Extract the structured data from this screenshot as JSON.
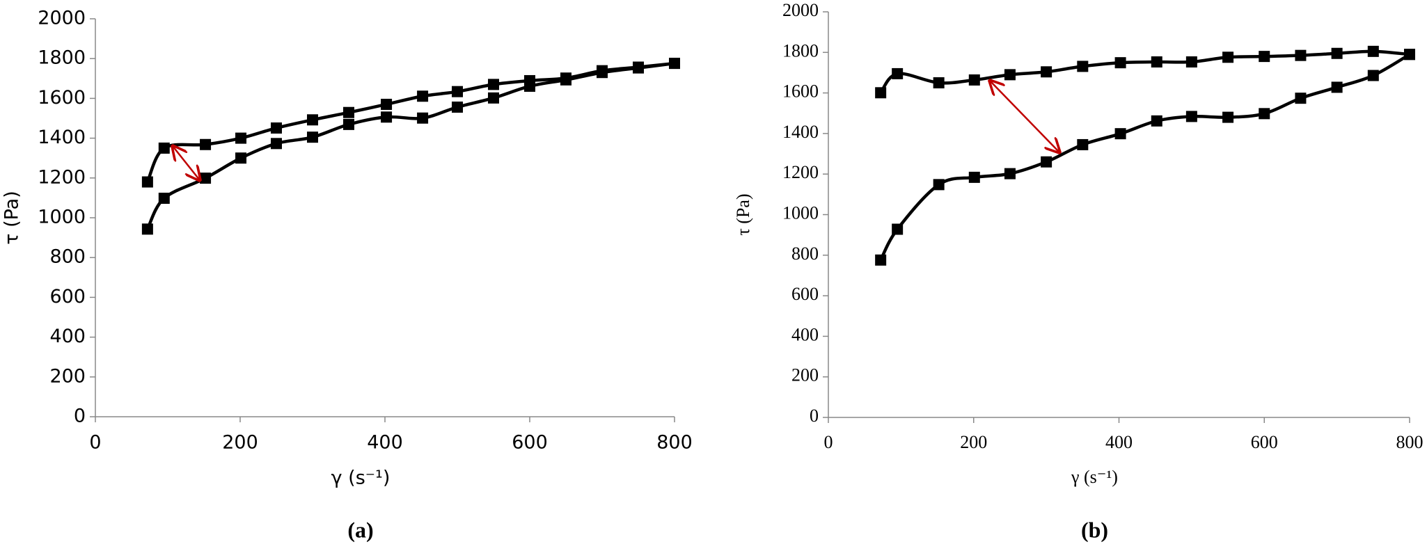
{
  "chart_data": [
    {
      "type": "line",
      "panel_label": "(a)",
      "x_label": "γ (s⁻¹)",
      "y_label": "τ (Pa)",
      "x": [
        72,
        95,
        152,
        201,
        250,
        300,
        350,
        402,
        452,
        500,
        550,
        600,
        650,
        700,
        750,
        800
      ],
      "xlim": [
        0,
        800
      ],
      "xticks": [
        0,
        200,
        400,
        600,
        800
      ],
      "ylim": [
        0,
        2000
      ],
      "yticks": [
        0,
        200,
        400,
        600,
        800,
        1000,
        1200,
        1400,
        1600,
        1800,
        2000
      ],
      "series": [
        {
          "color": "#000000",
          "values": [
            1180,
            1350,
            1368,
            1400,
            1451,
            1492,
            1529,
            1570,
            1611,
            1634,
            1670,
            1689,
            1702,
            1739,
            1757,
            1776
          ]
        },
        {
          "color": "#000000",
          "values": [
            943,
            1098,
            1199,
            1300,
            1373,
            1405,
            1469,
            1506,
            1501,
            1556,
            1602,
            1661,
            1693,
            1730,
            1753,
            1776
          ]
        }
      ]
    },
    {
      "type": "line",
      "panel_label": "(b)",
      "x_label": "γ (s⁻¹)",
      "y_label": "τ (Pa)",
      "x": [
        72,
        95,
        152,
        201,
        250,
        300,
        350,
        402,
        452,
        500,
        550,
        600,
        650,
        700,
        750,
        800
      ],
      "xlim": [
        0,
        800
      ],
      "xticks": [
        0,
        200,
        400,
        600,
        800
      ],
      "ylim": [
        0,
        2000
      ],
      "yticks": [
        0,
        200,
        400,
        600,
        800,
        1000,
        1200,
        1400,
        1600,
        1800,
        2000
      ],
      "series": [
        {
          "color": "#000000",
          "values": [
            1601,
            1695,
            1650,
            1664,
            1690,
            1704,
            1731,
            1749,
            1753,
            1753,
            1776,
            1780,
            1785,
            1795,
            1805,
            1790
          ]
        },
        {
          "color": "#000000",
          "values": [
            776,
            928,
            1148,
            1184,
            1202,
            1260,
            1345,
            1399,
            1462,
            1484,
            1480,
            1498,
            1574,
            1628,
            1686,
            1790
          ]
        }
      ]
    }
  ]
}
